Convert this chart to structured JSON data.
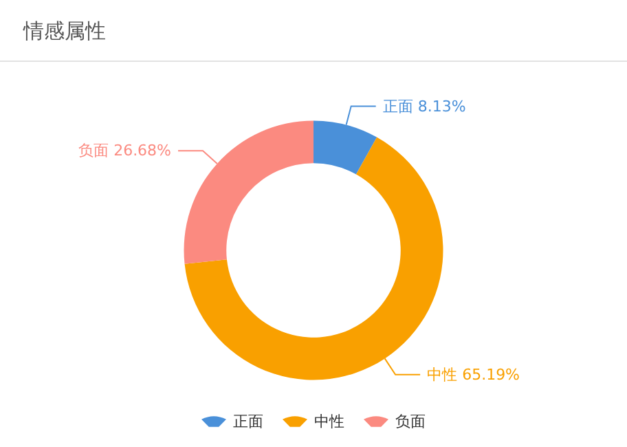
{
  "chart_data": {
    "type": "donut",
    "title": "情感属性",
    "categories": [
      "正面",
      "中性",
      "负面"
    ],
    "values": [
      8.13,
      65.19,
      26.68
    ],
    "colors": [
      "#4a90d9",
      "#f9a000",
      "#fb8a80"
    ],
    "value_labels": [
      "8.13%",
      "65.19%",
      "26.68%"
    ],
    "legend": "bottom"
  }
}
